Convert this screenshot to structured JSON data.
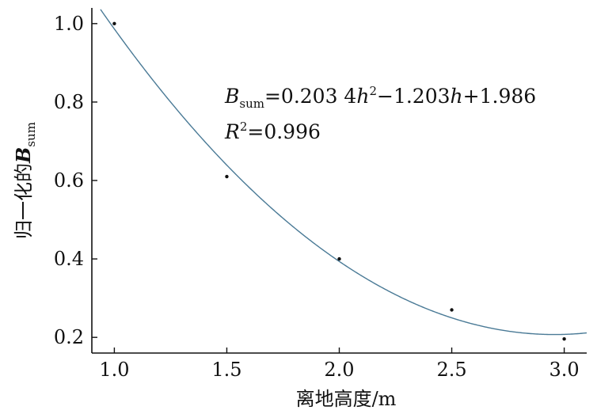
{
  "chart_data": {
    "type": "scatter",
    "xlabel": "离地高度/m",
    "ylabel_prefix": "归一化的",
    "ylabel_var": "B",
    "ylabel_sub": "sum",
    "x_ticks": [
      "1.0",
      "1.5",
      "2.0",
      "2.5",
      "3.0"
    ],
    "y_ticks": [
      "0.2",
      "0.4",
      "0.6",
      "0.8",
      "1.0"
    ],
    "xlim": [
      0.9,
      3.1
    ],
    "ylim": [
      0.16,
      1.04
    ],
    "grid": false,
    "points": [
      {
        "x": 1.0,
        "y": 1.0
      },
      {
        "x": 1.5,
        "y": 0.61
      },
      {
        "x": 2.0,
        "y": 0.4
      },
      {
        "x": 2.5,
        "y": 0.27
      },
      {
        "x": 3.0,
        "y": 0.196
      }
    ],
    "fit": {
      "a": 0.2034,
      "b": -1.203,
      "c": 1.986
    },
    "fit_color": "#4a7a96",
    "equation": {
      "var": "B",
      "sub": "sum",
      "rhs_1": "=0.203 4",
      "h1": "h",
      "sup1": "2",
      "rhs_2": "−1.203",
      "h2": "h",
      "rhs_3": "+1.986"
    },
    "r2": {
      "var": "R",
      "sup": "2",
      "rhs": "=0.996"
    }
  }
}
